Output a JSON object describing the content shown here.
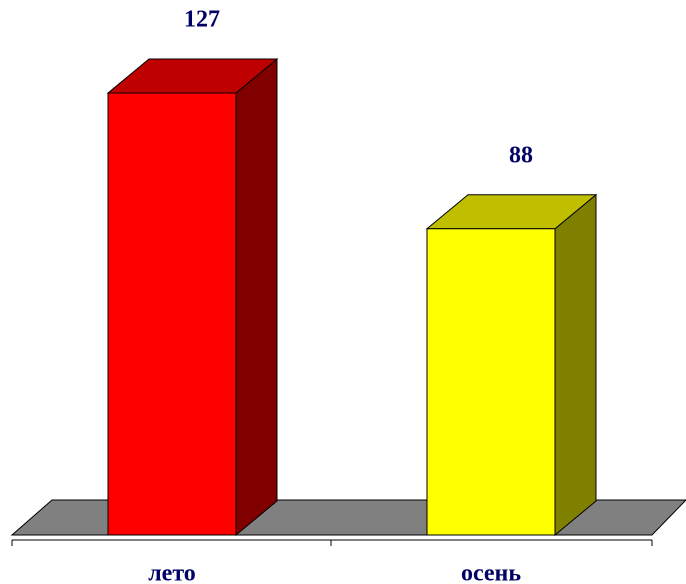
{
  "chart_data": {
    "type": "bar3d",
    "categories": [
      "лето",
      "осень"
    ],
    "values": [
      127,
      88
    ],
    "colors": [
      "#ff0000",
      "#ffff00"
    ]
  }
}
